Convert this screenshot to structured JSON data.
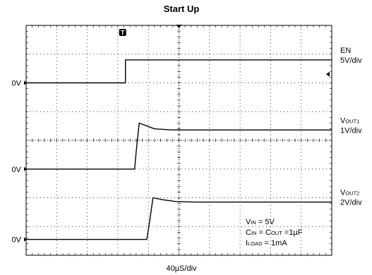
{
  "chart_data": {
    "type": "line",
    "title": "Start Up",
    "xlabel": "40µS/div",
    "x_divisions": 10,
    "y_divisions": 8,
    "trigger_marker": "T",
    "traces": [
      {
        "name_main": "EN",
        "name_sub": "",
        "scale": "5V/div",
        "ground_label": "0V",
        "ground_div": 6.0,
        "points": [
          [
            0,
            0
          ],
          [
            3.25,
            0
          ],
          [
            3.25,
            0.8
          ],
          [
            10,
            0.8
          ]
        ]
      },
      {
        "name_main": "V",
        "name_sub": "OUT1",
        "scale": "1V/div",
        "ground_label": "0V",
        "ground_div": 3.0,
        "points": [
          [
            0,
            0
          ],
          [
            3.55,
            0
          ],
          [
            3.6,
            0.6
          ],
          [
            3.7,
            1.6
          ],
          [
            3.9,
            1.52
          ],
          [
            4.2,
            1.4
          ],
          [
            4.8,
            1.36
          ],
          [
            10,
            1.36
          ]
        ]
      },
      {
        "name_main": "V",
        "name_sub": "OUT2",
        "scale": "2V/div",
        "ground_label": "0V",
        "ground_div": 0.55,
        "points": [
          [
            0,
            0
          ],
          [
            3.95,
            0
          ],
          [
            4.05,
            0.7
          ],
          [
            4.15,
            1.45
          ],
          [
            4.5,
            1.38
          ],
          [
            4.9,
            1.32
          ],
          [
            5.5,
            1.3
          ],
          [
            10,
            1.3
          ]
        ]
      }
    ],
    "annotations": [
      {
        "main": "V",
        "sub": "IN",
        "text": "   = 5V"
      },
      {
        "main": "C",
        "sub": "IN",
        "text": "   = C",
        "sub2": "OUT",
        "text2": " =1µF"
      },
      {
        "main": "I",
        "sub": "LOAD",
        "text": " = 1mA"
      }
    ],
    "colors": {
      "trace": "#000000",
      "grid": "#000000",
      "background": "#ffffff"
    }
  }
}
